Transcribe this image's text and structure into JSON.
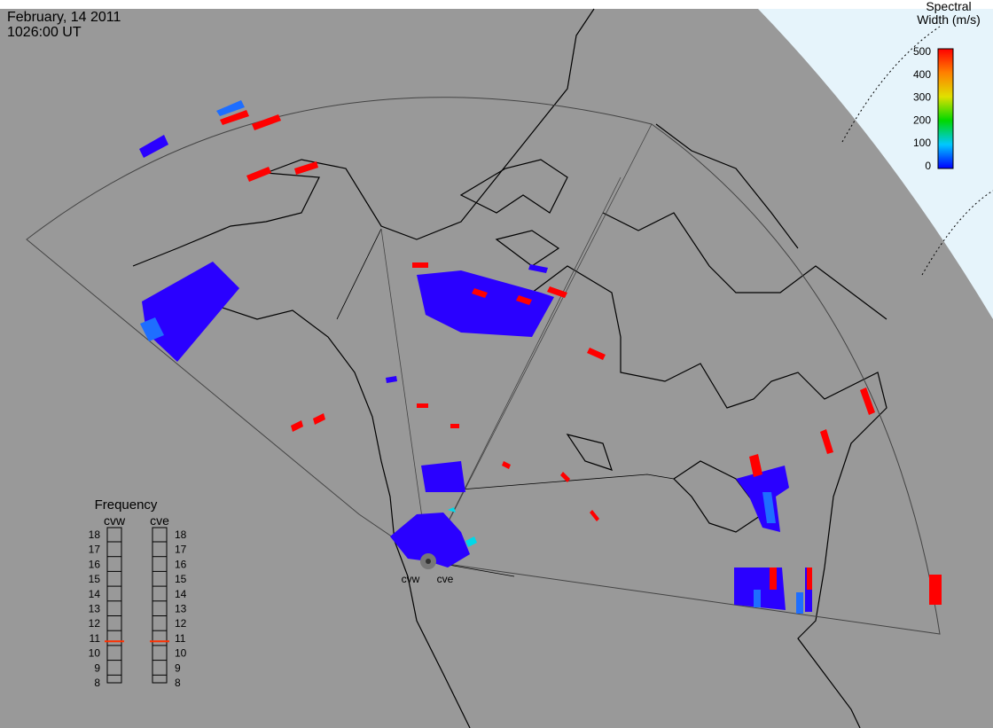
{
  "header": {
    "date": "February, 14 2011",
    "time": "1026:00 UT"
  },
  "colorbar": {
    "title_lines": [
      "Spectral",
      "Width (m/s)"
    ],
    "range": [
      0,
      500
    ],
    "ticks": [
      0,
      100,
      200,
      300,
      400,
      500
    ]
  },
  "frequency": {
    "title": "Frequency",
    "range": [
      8,
      18
    ],
    "ticks": [
      8,
      9,
      10,
      11,
      12,
      13,
      14,
      15,
      16,
      17,
      18
    ],
    "radars": [
      {
        "name": "cvw",
        "value": 10.8
      },
      {
        "name": "cve",
        "value": 10.8
      }
    ]
  },
  "radar_labels": [
    "cvw",
    "cve"
  ]
}
